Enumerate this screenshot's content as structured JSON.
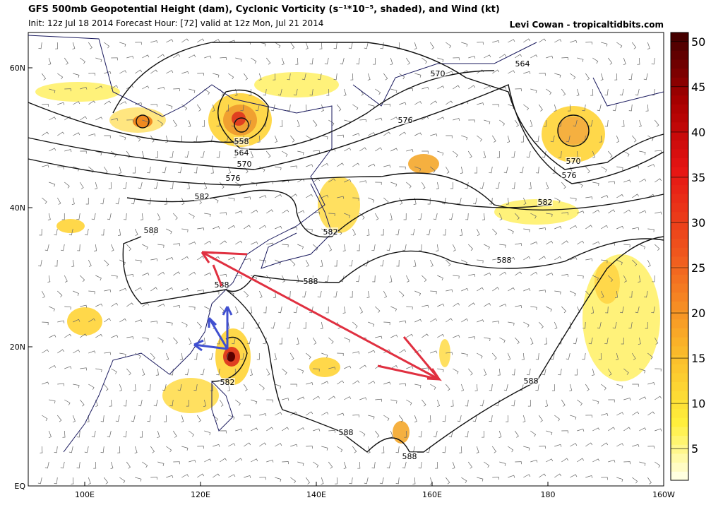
{
  "header": {
    "title": "GFS 500mb Geopotential Height (dam), Cyclonic Vorticity (s⁻¹*10⁻⁵, shaded), and Wind (kt)",
    "init": "Init: 12z Jul 18 2014 Forecast Hour: [72] valid at 12z Mon, Jul 21 2014",
    "credit": "Levi Cowan - tropicaltidbits.com"
  },
  "map": {
    "lat_labels": [
      "60N",
      "40N",
      "20N",
      "EQ"
    ],
    "lon_labels": [
      "100E",
      "120E",
      "140E",
      "160E",
      "180",
      "160W"
    ]
  },
  "colorbar": {
    "lim": [
      1.5,
      51
    ],
    "ticks": [
      5,
      10,
      15,
      20,
      25,
      30,
      35,
      40,
      45,
      50
    ]
  },
  "contour_labels": [
    570,
    564,
    576,
    558,
    564,
    570,
    576,
    582,
    570,
    576,
    582,
    588,
    582,
    588,
    588,
    588,
    582,
    588,
    588,
    588
  ]
}
